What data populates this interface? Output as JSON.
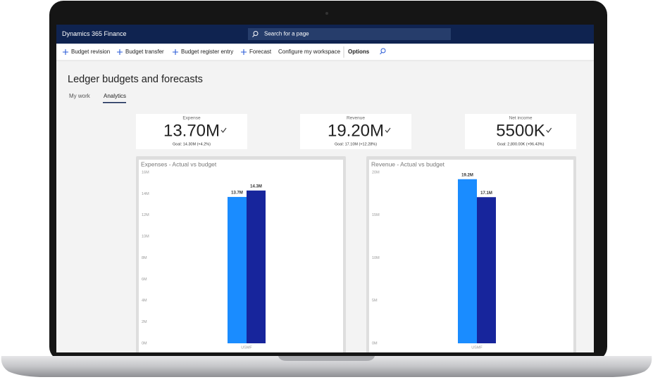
{
  "app": {
    "title": "Dynamics 365 Finance",
    "search_placeholder": "Search for a page"
  },
  "toolbar": {
    "items": [
      "Budget revision",
      "Budget transfer",
      "Budget register entry",
      "Forecast"
    ],
    "configure": "Configure my workspace",
    "options": "Options"
  },
  "page": {
    "title": "Ledger budgets and forecasts",
    "tabs": [
      "My work",
      "Analytics"
    ]
  },
  "kpis": [
    {
      "label": "Expense",
      "value": "13.70M",
      "goal": "Goal: 14.30M (+4.2%)"
    },
    {
      "label": "Revenue",
      "value": "19.20M",
      "goal": "Goal: 17.10M (+12.28%)"
    },
    {
      "label": "Net income",
      "value": "5500K",
      "goal": "Goal: 2,800.00K (+96.43%)"
    }
  ],
  "chart_data": [
    {
      "type": "bar",
      "title": "Expenses - Actual vs budget",
      "categories": [
        "USMF"
      ],
      "series": [
        {
          "color": "#1a8cff",
          "values": [
            13.7
          ],
          "value_labels": [
            "13.7M"
          ]
        },
        {
          "color": "#17259c",
          "values": [
            14.3
          ],
          "value_labels": [
            "14.3M"
          ]
        }
      ],
      "ylim": [
        0,
        16
      ],
      "yticks": [
        {
          "value": 0,
          "label": "0M"
        },
        {
          "value": 2,
          "label": "2M"
        },
        {
          "value": 4,
          "label": "4M"
        },
        {
          "value": 6,
          "label": "6M"
        },
        {
          "value": 8,
          "label": "8M"
        },
        {
          "value": 10,
          "label": "10M"
        },
        {
          "value": 12,
          "label": "12M"
        },
        {
          "value": 14,
          "label": "14M"
        },
        {
          "value": 16,
          "label": "16M"
        }
      ]
    },
    {
      "type": "bar",
      "title": "Revenue - Actual vs budget",
      "categories": [
        "USMF"
      ],
      "series": [
        {
          "color": "#1a8cff",
          "values": [
            19.2
          ],
          "value_labels": [
            "19.2M"
          ]
        },
        {
          "color": "#17259c",
          "values": [
            17.1
          ],
          "value_labels": [
            "17.1M"
          ]
        }
      ],
      "ylim": [
        0,
        20
      ],
      "yticks": [
        {
          "value": 0,
          "label": "0M"
        },
        {
          "value": 5,
          "label": "5M"
        },
        {
          "value": 10,
          "label": "10M"
        },
        {
          "value": 15,
          "label": "15M"
        },
        {
          "value": 20,
          "label": "20M"
        }
      ]
    }
  ]
}
